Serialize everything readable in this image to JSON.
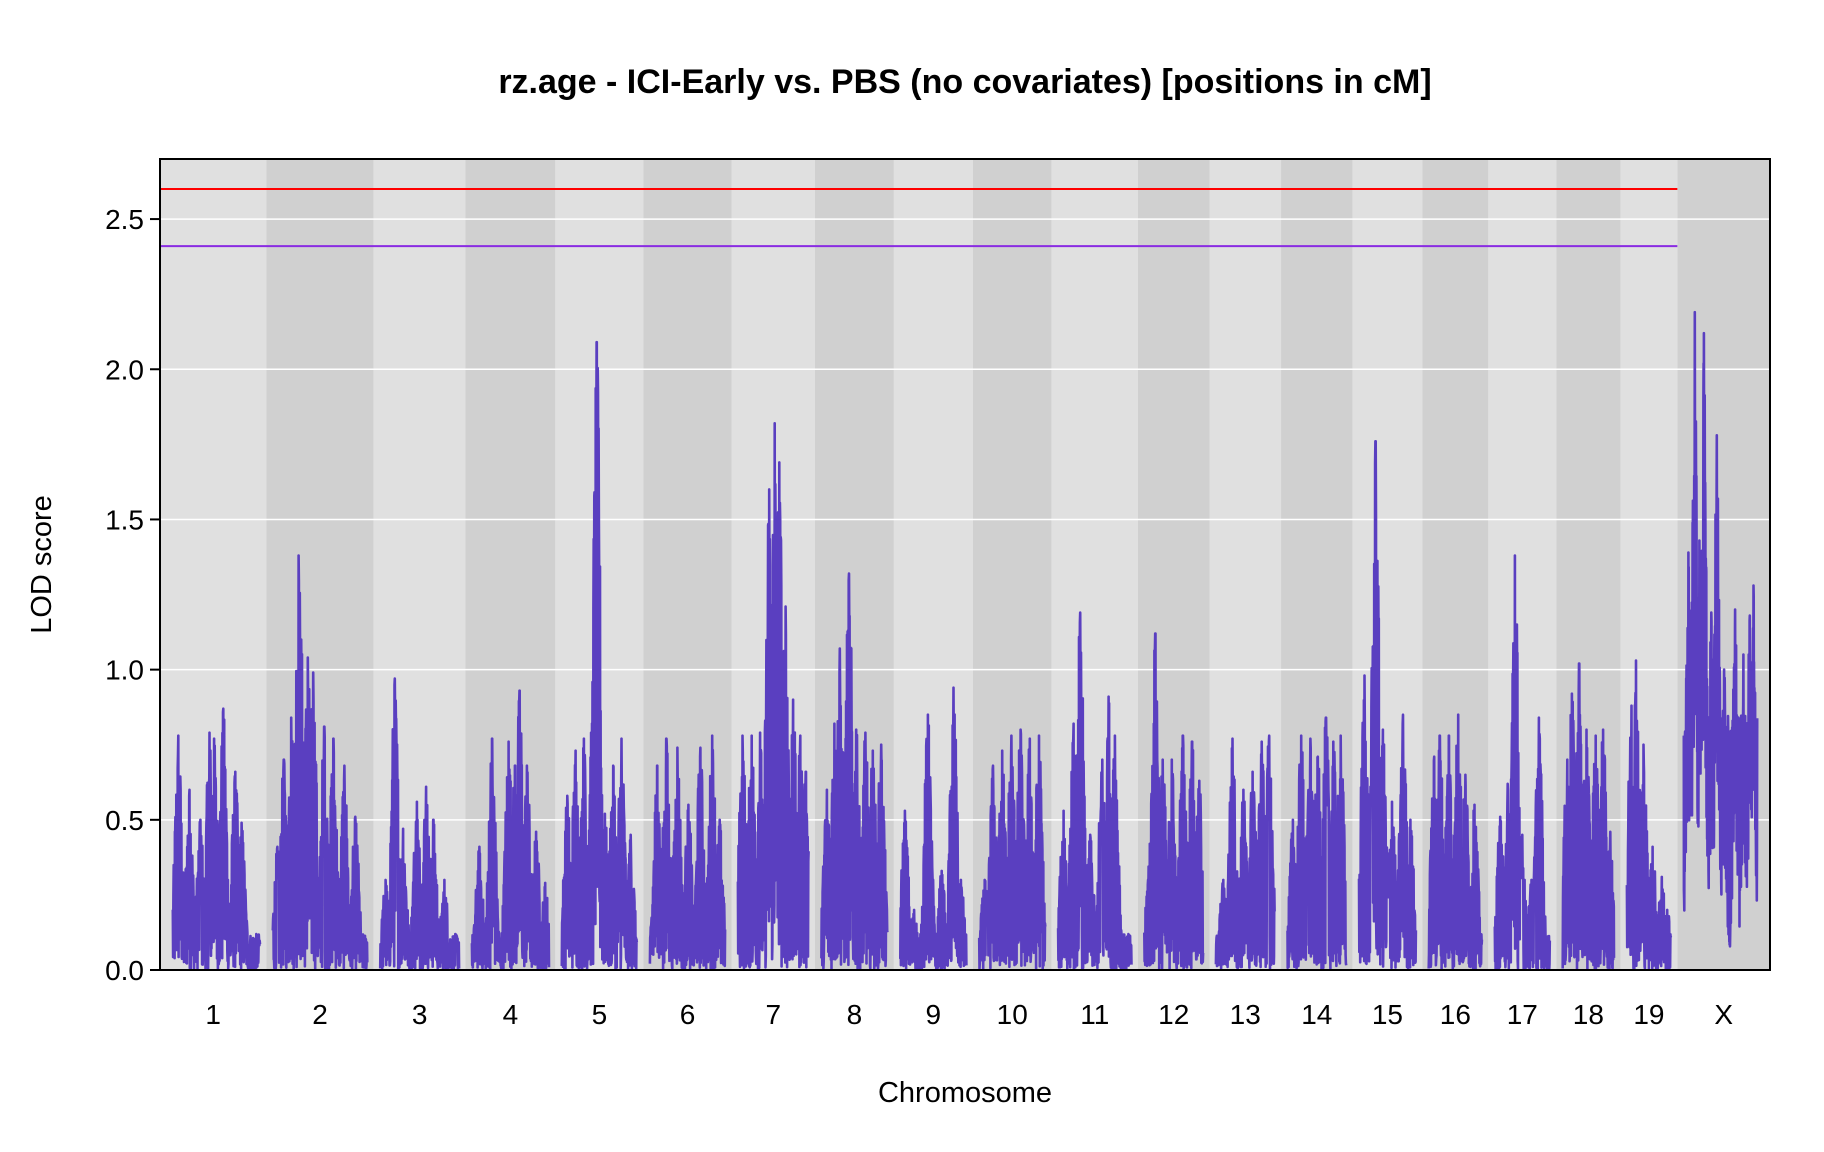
{
  "chart_data": {
    "type": "line",
    "title": "rz.age - ICI-Early vs. PBS (no covariates) [positions in cM]",
    "xlabel": "Chromosome",
    "ylabel": "LOD score",
    "ylim": [
      0,
      2.7
    ],
    "yticks": [
      "0.0",
      "0.5",
      "1.0",
      "1.5",
      "2.0",
      "2.5"
    ],
    "grid": "horizontal",
    "colors": {
      "line": "#5a3fc0",
      "band_light": "#e0e0e0",
      "band_dark": "#d0d0d0",
      "threshold_high": "#ff0000",
      "threshold_low": "#8a2be2",
      "gridline": "#ffffff"
    },
    "thresholds": [
      {
        "lod": 2.6,
        "color": "#ff0000"
      },
      {
        "lod": 2.41,
        "color": "#8a2be2"
      }
    ],
    "chromosomes": [
      {
        "label": "1",
        "length": 95,
        "peaks": [
          [
            6,
            0.78
          ],
          [
            18,
            0.6
          ],
          [
            30,
            0.5
          ],
          [
            40,
            0.79
          ],
          [
            45,
            0.77
          ],
          [
            55,
            0.87
          ],
          [
            60,
            0.3
          ],
          [
            68,
            0.66
          ],
          [
            75,
            0.49
          ],
          [
            88,
            0.08
          ]
        ]
      },
      {
        "label": "2",
        "length": 103,
        "peaks": [
          [
            5,
            0.41
          ],
          [
            12,
            0.7
          ],
          [
            20,
            0.84
          ],
          [
            28,
            1.38
          ],
          [
            31,
            1.1
          ],
          [
            38,
            1.04
          ],
          [
            44,
            0.99
          ],
          [
            56,
            0.81
          ],
          [
            66,
            0.77
          ],
          [
            78,
            0.68
          ],
          [
            90,
            0.51
          ]
        ]
      },
      {
        "label": "3",
        "length": 86,
        "peaks": [
          [
            6,
            0.3
          ],
          [
            16,
            0.97
          ],
          [
            25,
            0.47
          ],
          [
            40,
            0.56
          ],
          [
            50,
            0.61
          ],
          [
            58,
            0.5
          ],
          [
            70,
            0.3
          ]
        ]
      },
      {
        "label": "4",
        "length": 84,
        "peaks": [
          [
            8,
            0.41
          ],
          [
            22,
            0.77
          ],
          [
            40,
            0.76
          ],
          [
            47,
            0.68
          ],
          [
            52,
            0.93
          ],
          [
            60,
            0.68
          ],
          [
            70,
            0.46
          ],
          [
            80,
            0.29
          ]
        ]
      },
      {
        "label": "5",
        "length": 82,
        "peaks": [
          [
            6,
            0.58
          ],
          [
            15,
            0.73
          ],
          [
            24,
            0.77
          ],
          [
            32,
            0.79
          ],
          [
            38,
            2.09
          ],
          [
            47,
            0.52
          ],
          [
            56,
            0.68
          ],
          [
            65,
            0.77
          ],
          [
            75,
            0.45
          ]
        ]
      },
      {
        "label": "6",
        "length": 82,
        "peaks": [
          [
            8,
            0.68
          ],
          [
            18,
            0.77
          ],
          [
            30,
            0.74
          ],
          [
            42,
            0.55
          ],
          [
            55,
            0.74
          ],
          [
            68,
            0.78
          ],
          [
            76,
            0.5
          ]
        ]
      },
      {
        "label": "7",
        "length": 77,
        "peaks": [
          [
            5,
            0.78
          ],
          [
            15,
            0.78
          ],
          [
            24,
            0.79
          ],
          [
            34,
            1.6
          ],
          [
            40,
            1.82
          ],
          [
            45,
            1.69
          ],
          [
            52,
            1.21
          ],
          [
            60,
            0.9
          ],
          [
            68,
            0.78
          ],
          [
            74,
            0.66
          ]
        ]
      },
      {
        "label": "8",
        "length": 72,
        "peaks": [
          [
            6,
            0.6
          ],
          [
            14,
            0.82
          ],
          [
            20,
            1.07
          ],
          [
            30,
            1.32
          ],
          [
            38,
            0.8
          ],
          [
            48,
            0.79
          ],
          [
            56,
            0.73
          ],
          [
            65,
            0.75
          ]
        ]
      },
      {
        "label": "9",
        "length": 72,
        "peaks": [
          [
            5,
            0.53
          ],
          [
            15,
            0.2
          ],
          [
            30,
            0.85
          ],
          [
            45,
            0.33
          ],
          [
            58,
            0.94
          ],
          [
            66,
            0.3
          ]
        ]
      },
      {
        "label": "10",
        "length": 72,
        "peaks": [
          [
            6,
            0.3
          ],
          [
            15,
            0.68
          ],
          [
            25,
            0.73
          ],
          [
            35,
            0.78
          ],
          [
            45,
            0.8
          ],
          [
            55,
            0.77
          ],
          [
            65,
            0.78
          ]
        ]
      },
      {
        "label": "11",
        "length": 80,
        "peaks": [
          [
            6,
            0.53
          ],
          [
            17,
            0.82
          ],
          [
            24,
            1.19
          ],
          [
            35,
            0.45
          ],
          [
            48,
            0.7
          ],
          [
            55,
            0.91
          ],
          [
            62,
            0.78
          ]
        ]
      },
      {
        "label": "12",
        "length": 64,
        "peaks": [
          [
            6,
            0.42
          ],
          [
            12,
            1.12
          ],
          [
            20,
            0.7
          ],
          [
            30,
            0.7
          ],
          [
            42,
            0.78
          ],
          [
            52,
            0.76
          ],
          [
            60,
            0.63
          ]
        ]
      },
      {
        "label": "13",
        "length": 64,
        "peaks": [
          [
            8,
            0.3
          ],
          [
            18,
            0.77
          ],
          [
            30,
            0.6
          ],
          [
            40,
            0.66
          ],
          [
            50,
            0.76
          ],
          [
            58,
            0.78
          ]
        ]
      },
      {
        "label": "14",
        "length": 64,
        "peaks": [
          [
            6,
            0.5
          ],
          [
            15,
            0.78
          ],
          [
            25,
            0.77
          ],
          [
            33,
            0.71
          ],
          [
            42,
            0.84
          ],
          [
            50,
            0.76
          ],
          [
            58,
            0.78
          ]
        ]
      },
      {
        "label": "15",
        "length": 62,
        "peaks": [
          [
            6,
            0.98
          ],
          [
            13,
            0.55
          ],
          [
            18,
            1.76
          ],
          [
            26,
            0.8
          ],
          [
            36,
            0.56
          ],
          [
            48,
            0.85
          ],
          [
            56,
            0.5
          ]
        ]
      },
      {
        "label": "16",
        "length": 58,
        "peaks": [
          [
            6,
            0.71
          ],
          [
            12,
            0.78
          ],
          [
            22,
            0.78
          ],
          [
            32,
            0.85
          ],
          [
            40,
            0.65
          ],
          [
            50,
            0.55
          ]
        ]
      },
      {
        "label": "17",
        "length": 60,
        "peaks": [
          [
            6,
            0.51
          ],
          [
            14,
            0.62
          ],
          [
            22,
            1.38
          ],
          [
            30,
            0.45
          ],
          [
            40,
            0.3
          ],
          [
            48,
            0.84
          ]
        ]
      },
      {
        "label": "18",
        "length": 56,
        "peaks": [
          [
            5,
            0.7
          ],
          [
            10,
            0.92
          ],
          [
            18,
            1.02
          ],
          [
            26,
            0.8
          ],
          [
            36,
            0.78
          ],
          [
            44,
            0.8
          ],
          [
            52,
            0.46
          ]
        ]
      },
      {
        "label": "19",
        "length": 48,
        "peaks": [
          [
            5,
            0.88
          ],
          [
            10,
            1.03
          ],
          [
            18,
            0.75
          ],
          [
            28,
            0.41
          ],
          [
            38,
            0.31
          ],
          [
            44,
            0.2
          ]
        ]
      },
      {
        "label": "X",
        "length": 80,
        "peaks": [
          [
            5,
            1.39
          ],
          [
            12,
            2.19
          ],
          [
            17,
            1.43
          ],
          [
            22,
            2.12
          ],
          [
            30,
            1.19
          ],
          [
            36,
            1.78
          ],
          [
            44,
            1.0
          ],
          [
            56,
            1.2
          ],
          [
            65,
            1.05
          ],
          [
            72,
            1.18
          ],
          [
            76,
            1.28
          ]
        ]
      }
    ]
  }
}
